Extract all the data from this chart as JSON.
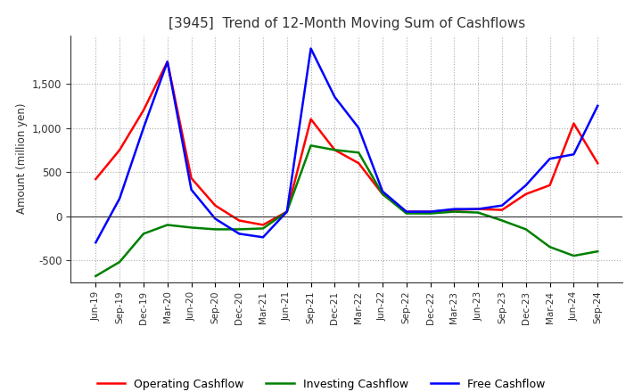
{
  "title": "[3945]  Trend of 12-Month Moving Sum of Cashflows",
  "ylabel": "Amount (million yen)",
  "ylim": [
    -750,
    2050
  ],
  "yticks": [
    -500,
    0,
    500,
    1000,
    1500
  ],
  "dates": [
    "Jun-19",
    "Sep-19",
    "Dec-19",
    "Mar-20",
    "Jun-20",
    "Sep-20",
    "Dec-20",
    "Mar-21",
    "Jun-21",
    "Sep-21",
    "Dec-21",
    "Mar-22",
    "Jun-22",
    "Sep-22",
    "Dec-22",
    "Mar-23",
    "Jun-23",
    "Sep-23",
    "Dec-23",
    "Mar-24",
    "Jun-24",
    "Sep-24"
  ],
  "operating": [
    420,
    750,
    1200,
    1750,
    430,
    120,
    -50,
    -100,
    50,
    1100,
    750,
    600,
    250,
    50,
    50,
    70,
    80,
    70,
    250,
    350,
    1050,
    600
  ],
  "investing": [
    -680,
    -520,
    -200,
    -100,
    -130,
    -150,
    -150,
    -140,
    50,
    800,
    750,
    720,
    250,
    30,
    30,
    50,
    40,
    -50,
    -150,
    -350,
    -450,
    -400
  ],
  "free": [
    -300,
    200,
    1000,
    1750,
    300,
    -30,
    -200,
    -240,
    50,
    1900,
    1350,
    1000,
    280,
    50,
    50,
    80,
    80,
    120,
    350,
    650,
    700,
    1250
  ],
  "operating_color": "#ff0000",
  "investing_color": "#008000",
  "free_color": "#0000ff",
  "background_color": "#ffffff",
  "grid_color": "#aaaaaa"
}
